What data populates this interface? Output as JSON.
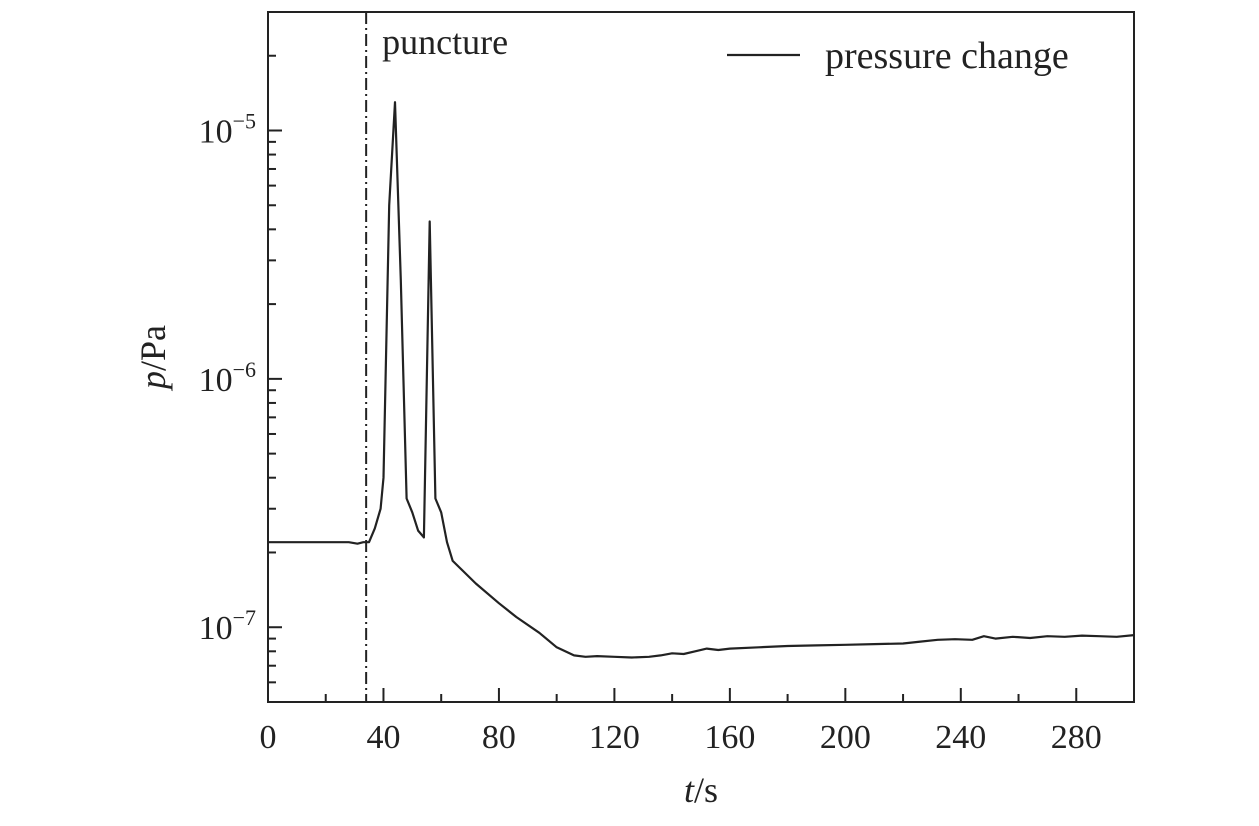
{
  "chart_data": {
    "type": "line",
    "xlabel_var": "t",
    "xlabel_unit": "/s",
    "ylabel_var": "p",
    "ylabel_unit": "/Pa",
    "xlim": [
      0,
      300
    ],
    "ylim": [
      5e-08,
      3e-05
    ],
    "yscale": "log",
    "grid": false,
    "legend_position": "top-right",
    "x_ticks": [
      0,
      40,
      80,
      120,
      160,
      200,
      240,
      280
    ],
    "y_ticks": [
      {
        "value": 1e-05,
        "base": "10",
        "exp": "−5"
      },
      {
        "value": 1e-06,
        "base": "10",
        "exp": "−6"
      },
      {
        "value": 1e-07,
        "base": "10",
        "exp": "−7"
      }
    ],
    "annotation": {
      "label": "puncture",
      "x": 34
    },
    "series": [
      {
        "name": "pressure change",
        "color": "#222222",
        "points": [
          [
            0,
            2.2e-07
          ],
          [
            28,
            2.2e-07
          ],
          [
            31,
            2.17e-07
          ],
          [
            33,
            2.2e-07
          ],
          [
            35,
            2.2e-07
          ],
          [
            37,
            2.5e-07
          ],
          [
            39,
            3e-07
          ],
          [
            40,
            4e-07
          ],
          [
            42,
            5e-06
          ],
          [
            44,
            1.3e-05
          ],
          [
            46,
            2.5e-06
          ],
          [
            48,
            3.3e-07
          ],
          [
            50,
            2.9e-07
          ],
          [
            52,
            2.45e-07
          ],
          [
            54,
            2.3e-07
          ],
          [
            56,
            4.3e-06
          ],
          [
            58,
            3.3e-07
          ],
          [
            60,
            2.9e-07
          ],
          [
            62,
            2.2e-07
          ],
          [
            64,
            1.85e-07
          ],
          [
            72,
            1.5e-07
          ],
          [
            80,
            1.25e-07
          ],
          [
            86,
            1.1e-07
          ],
          [
            94,
            9.5e-08
          ],
          [
            100,
            8.3e-08
          ],
          [
            106,
            7.7e-08
          ],
          [
            110,
            7.6e-08
          ],
          [
            114,
            7.65e-08
          ],
          [
            120,
            7.6e-08
          ],
          [
            126,
            7.55e-08
          ],
          [
            132,
            7.6e-08
          ],
          [
            136,
            7.7e-08
          ],
          [
            140,
            7.85e-08
          ],
          [
            144,
            7.8e-08
          ],
          [
            148,
            8e-08
          ],
          [
            152,
            8.2e-08
          ],
          [
            156,
            8.1e-08
          ],
          [
            160,
            8.2e-08
          ],
          [
            170,
            8.3e-08
          ],
          [
            180,
            8.4e-08
          ],
          [
            190,
            8.45e-08
          ],
          [
            200,
            8.5e-08
          ],
          [
            210,
            8.55e-08
          ],
          [
            220,
            8.6e-08
          ],
          [
            226,
            8.75e-08
          ],
          [
            232,
            8.9e-08
          ],
          [
            238,
            8.95e-08
          ],
          [
            244,
            8.9e-08
          ],
          [
            248,
            9.2e-08
          ],
          [
            252,
            9e-08
          ],
          [
            258,
            9.15e-08
          ],
          [
            264,
            9.05e-08
          ],
          [
            270,
            9.2e-08
          ],
          [
            276,
            9.15e-08
          ],
          [
            282,
            9.25e-08
          ],
          [
            288,
            9.2e-08
          ],
          [
            294,
            9.15e-08
          ],
          [
            300,
            9.3e-08
          ]
        ]
      }
    ]
  }
}
